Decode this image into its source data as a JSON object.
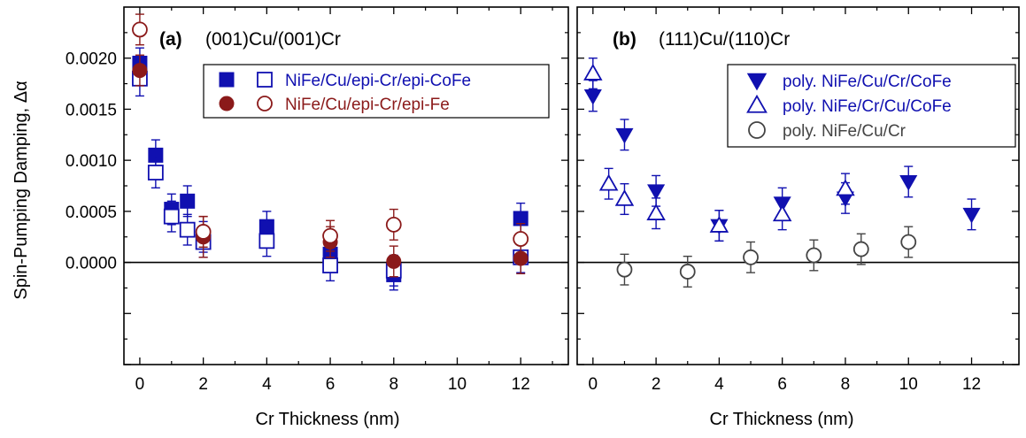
{
  "figure": {
    "ylabel": "Spin-Pumping Damping, Δα",
    "xlabel": "Cr Thickness (nm)"
  },
  "colors": {
    "blue": "#1010b0",
    "red": "#8b1a1a",
    "gray": "#444444",
    "zero_line": "#000000"
  },
  "chart_data": [
    {
      "type": "scatter",
      "panel_label": "(a)",
      "title": "(001)Cu/(001)Cr",
      "xlabel": "Cr Thickness (nm)",
      "ylabel": "Spin-Pumping Damping, Δα",
      "xlim": [
        -0.5,
        13.5
      ],
      "ylim": [
        -0.001,
        0.0025
      ],
      "xticks": [
        "0",
        "2",
        "4",
        "6",
        "8",
        "10",
        "12"
      ],
      "yticks": [
        "0.0000",
        "0.0005",
        "0.0010",
        "0.0015",
        "0.0020"
      ],
      "grid": false,
      "legend_position": "top-right",
      "legend_entries": [
        "NiFe/Cu/epi-Cr/epi-CoFe",
        "NiFe/Cu/epi-Cr/epi-Fe"
      ],
      "series": [
        {
          "name": "NiFe/Cu/epi-Cr/epi-CoFe",
          "color": "blue",
          "marker": "square-filled",
          "points": [
            {
              "x": 0,
              "y": 0.00195,
              "err": 0.00015
            },
            {
              "x": 0.5,
              "y": 0.00105,
              "err": 0.00015
            },
            {
              "x": 1,
              "y": 0.00052,
              "err": 0.00015
            },
            {
              "x": 1.5,
              "y": 0.0006,
              "err": 0.00015
            },
            {
              "x": 2,
              "y": 0.00025,
              "err": 0.00015
            },
            {
              "x": 4,
              "y": 0.00035,
              "err": 0.00015
            },
            {
              "x": 6,
              "y": 8e-05,
              "err": 0.00015
            },
            {
              "x": 8,
              "y": -0.00012,
              "err": 0.00015
            },
            {
              "x": 12,
              "y": 0.00043,
              "err": 0.00015
            }
          ]
        },
        {
          "name": "NiFe/Cu/epi-Cr/epi-CoFe (open)",
          "color": "blue",
          "marker": "square-open",
          "points": [
            {
              "x": 0,
              "y": 0.0018,
              "err": 0.00017
            },
            {
              "x": 0.5,
              "y": 0.00088,
              "err": 0.00015
            },
            {
              "x": 1,
              "y": 0.00045,
              "err": 0.00015
            },
            {
              "x": 1.5,
              "y": 0.00032,
              "err": 0.00015
            },
            {
              "x": 2,
              "y": 0.0002,
              "err": 0.00015
            },
            {
              "x": 4,
              "y": 0.00021,
              "err": 0.00015
            },
            {
              "x": 6,
              "y": -3e-05,
              "err": 0.00015
            },
            {
              "x": 8,
              "y": -8e-05,
              "err": 0.00015
            },
            {
              "x": 12,
              "y": 5e-05,
              "err": 0.00015
            }
          ]
        },
        {
          "name": "NiFe/Cu/epi-Cr/epi-Fe",
          "color": "red",
          "marker": "circle-filled",
          "points": [
            {
              "x": 0,
              "y": 0.00188,
              "err": 0.00015
            },
            {
              "x": 2,
              "y": 0.00025,
              "err": 0.0002
            },
            {
              "x": 6,
              "y": 0.0002,
              "err": 0.00015
            },
            {
              "x": 8,
              "y": 1e-05,
              "err": 0.00015
            },
            {
              "x": 12,
              "y": 4e-05,
              "err": 0.00015
            }
          ]
        },
        {
          "name": "NiFe/Cu/epi-Cr/epi-Fe (open)",
          "color": "red",
          "marker": "circle-open",
          "points": [
            {
              "x": 0,
              "y": 0.00228,
              "err": 0.00015
            },
            {
              "x": 2,
              "y": 0.0003,
              "err": 0.00015
            },
            {
              "x": 6,
              "y": 0.00026,
              "err": 0.00015
            },
            {
              "x": 8,
              "y": 0.00037,
              "err": 0.00015
            },
            {
              "x": 12,
              "y": 0.00023,
              "err": 0.00015
            }
          ]
        }
      ]
    },
    {
      "type": "scatter",
      "panel_label": "(b)",
      "title": "(111)Cu/(110)Cr",
      "xlabel": "Cr Thickness (nm)",
      "xlim": [
        -0.5,
        13.5
      ],
      "ylim": [
        -0.001,
        0.0025
      ],
      "xticks": [
        "0",
        "2",
        "4",
        "6",
        "8",
        "10",
        "12"
      ],
      "grid": false,
      "legend_position": "top-right",
      "legend_entries": [
        "poly. NiFe/Cu/Cr/CoFe",
        "poly. NiFe/Cr/Cu/CoFe",
        "poly. NiFe/Cu/Cr"
      ],
      "series": [
        {
          "name": "poly. NiFe/Cu/Cr/CoFe",
          "color": "blue",
          "marker": "triangle-down-filled",
          "points": [
            {
              "x": 0,
              "y": 0.00163,
              "err": 0.00015
            },
            {
              "x": 1,
              "y": 0.00125,
              "err": 0.00015
            },
            {
              "x": 2,
              "y": 0.0007,
              "err": 0.00015
            },
            {
              "x": 4,
              "y": 0.00036,
              "err": 0.00015
            },
            {
              "x": 6,
              "y": 0.00058,
              "err": 0.00015
            },
            {
              "x": 8,
              "y": 0.00063,
              "err": 0.00015
            },
            {
              "x": 10,
              "y": 0.00079,
              "err": 0.00015
            },
            {
              "x": 12,
              "y": 0.00047,
              "err": 0.00015
            }
          ]
        },
        {
          "name": "poly. NiFe/Cr/Cu/CoFe",
          "color": "blue",
          "marker": "triangle-up-open",
          "points": [
            {
              "x": 0,
              "y": 0.00185,
              "err": 0.00015
            },
            {
              "x": 0.5,
              "y": 0.00077,
              "err": 0.00015
            },
            {
              "x": 1,
              "y": 0.00062,
              "err": 0.00015
            },
            {
              "x": 2,
              "y": 0.00048,
              "err": 0.00015
            },
            {
              "x": 4,
              "y": 0.00036,
              "err": 0.00015
            },
            {
              "x": 6,
              "y": 0.00047,
              "err": 0.00015
            },
            {
              "x": 8,
              "y": 0.00072,
              "err": 0.00015
            }
          ]
        },
        {
          "name": "poly. NiFe/Cu/Cr",
          "color": "gray",
          "marker": "circle-open",
          "points": [
            {
              "x": 1,
              "y": -7e-05,
              "err": 0.00015
            },
            {
              "x": 3,
              "y": -9e-05,
              "err": 0.00015
            },
            {
              "x": 5,
              "y": 5e-05,
              "err": 0.00015
            },
            {
              "x": 7,
              "y": 7e-05,
              "err": 0.00015
            },
            {
              "x": 8.5,
              "y": 0.00013,
              "err": 0.00015
            },
            {
              "x": 10,
              "y": 0.0002,
              "err": 0.00015
            }
          ]
        }
      ]
    }
  ]
}
